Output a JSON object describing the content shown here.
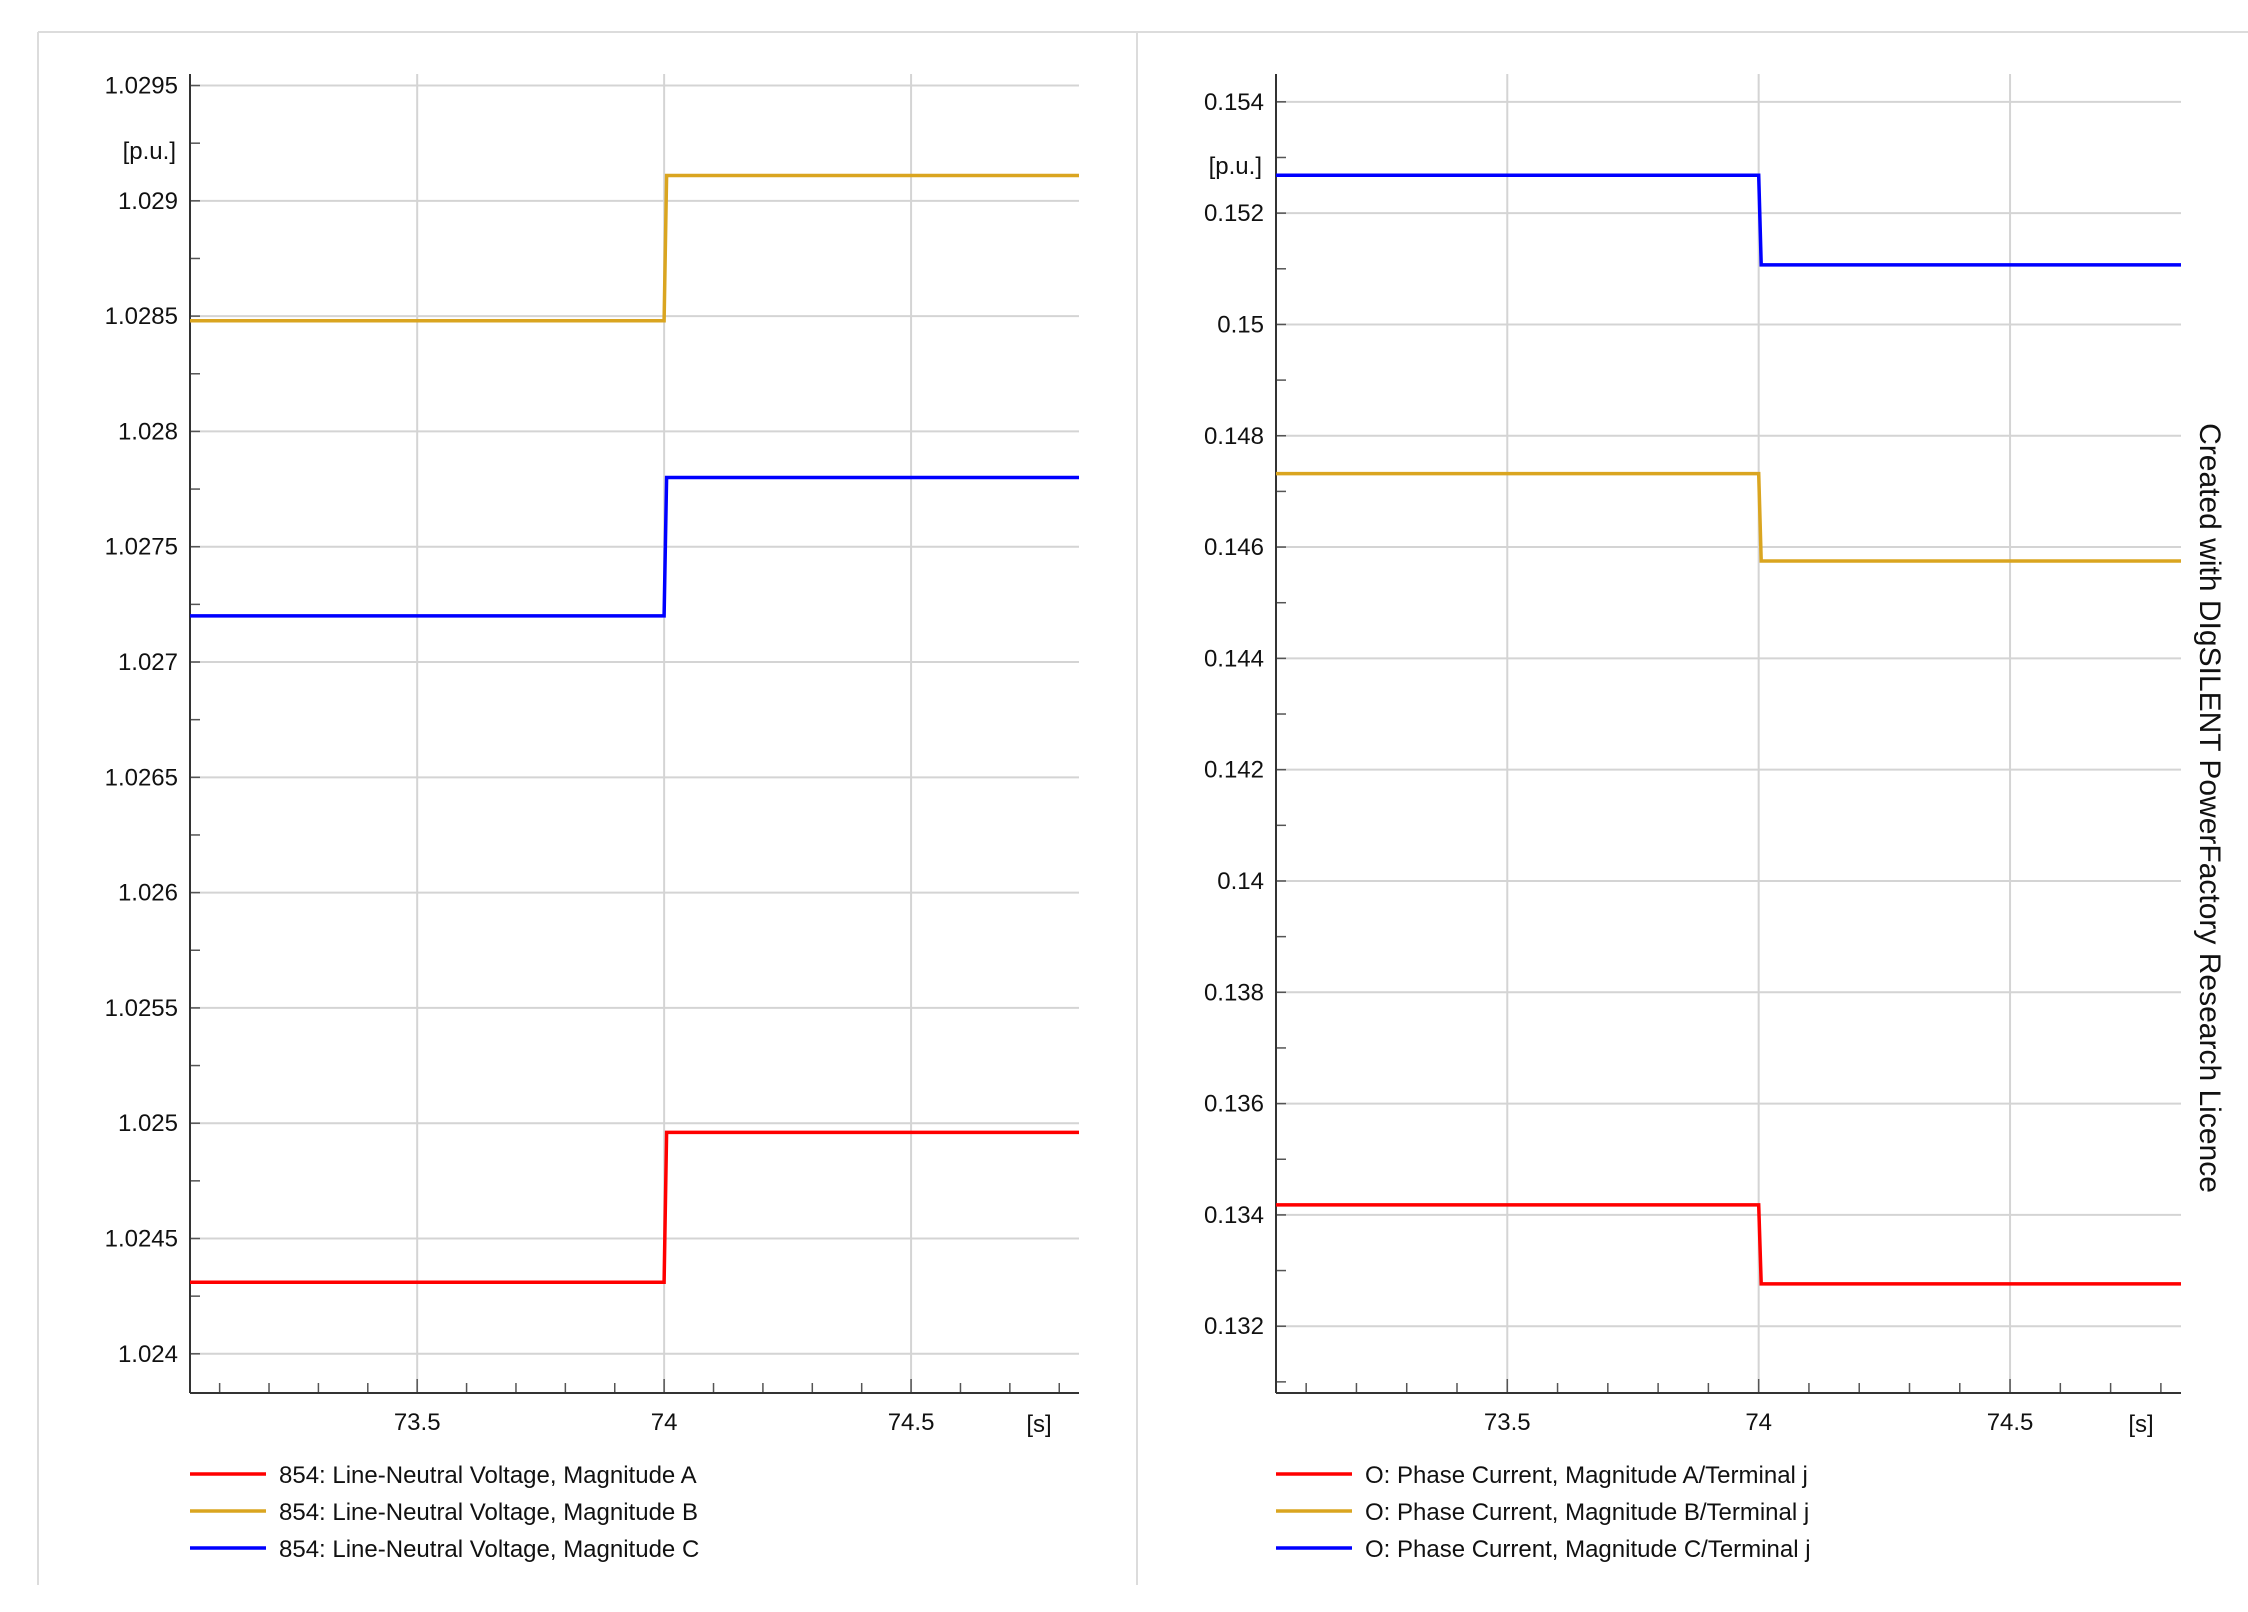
{
  "watermark": "Created with DIgSILENT PowerFactory Research Licence",
  "chart_data": [
    {
      "type": "line",
      "ylabel": "[p.u.]",
      "xlabel": "[s]",
      "xlim": [
        73.04,
        74.84
      ],
      "ylim": [
        1.02383,
        1.02955
      ],
      "x_ticks": [
        {
          "value": 73.5,
          "label": "73.5"
        },
        {
          "value": 74,
          "label": "74"
        },
        {
          "value": 74.5,
          "label": "74.5"
        }
      ],
      "x_minor_step": 0.1,
      "y_ticks": [
        {
          "value": 1.024,
          "label": "1.024"
        },
        {
          "value": 1.0245,
          "label": "1.0245"
        },
        {
          "value": 1.025,
          "label": "1.025"
        },
        {
          "value": 1.0255,
          "label": "1.0255"
        },
        {
          "value": 1.026,
          "label": "1.026"
        },
        {
          "value": 1.0265,
          "label": "1.0265"
        },
        {
          "value": 1.027,
          "label": "1.027"
        },
        {
          "value": 1.0275,
          "label": "1.0275"
        },
        {
          "value": 1.028,
          "label": "1.028"
        },
        {
          "value": 1.0285,
          "label": "1.0285"
        },
        {
          "value": 1.029,
          "label": "1.029"
        },
        {
          "value": 1.0295,
          "label": "1.0295"
        }
      ],
      "y_minor_step": 0.00025,
      "grid": true,
      "legend_position": "bottom",
      "series": [
        {
          "name": "854: Line-Neutral Voltage, Magnitude A",
          "color": "#ff0000",
          "x": [
            73.04,
            74.0,
            74.005,
            74.84
          ],
          "y": [
            1.02431,
            1.02431,
            1.02496,
            1.02496
          ]
        },
        {
          "name": "854: Line-Neutral Voltage, Magnitude B",
          "color": "#daa520",
          "x": [
            73.04,
            74.0,
            74.005,
            74.84
          ],
          "y": [
            1.02848,
            1.02848,
            1.02911,
            1.02911
          ]
        },
        {
          "name": "854: Line-Neutral Voltage, Magnitude C",
          "color": "#0000ff",
          "x": [
            73.04,
            74.0,
            74.005,
            74.84
          ],
          "y": [
            1.0272,
            1.0272,
            1.0278,
            1.0278
          ]
        }
      ]
    },
    {
      "type": "line",
      "ylabel": "[p.u.]",
      "xlabel": "[s]",
      "xlim": [
        73.04,
        74.84
      ],
      "ylim": [
        0.1308,
        0.1545
      ],
      "x_ticks": [
        {
          "value": 73.5,
          "label": "73.5"
        },
        {
          "value": 74,
          "label": "74"
        },
        {
          "value": 74.5,
          "label": "74.5"
        }
      ],
      "x_minor_step": 0.1,
      "y_ticks": [
        {
          "value": 0.132,
          "label": "0.132"
        },
        {
          "value": 0.134,
          "label": "0.134"
        },
        {
          "value": 0.136,
          "label": "0.136"
        },
        {
          "value": 0.138,
          "label": "0.138"
        },
        {
          "value": 0.14,
          "label": "0.14"
        },
        {
          "value": 0.142,
          "label": "0.142"
        },
        {
          "value": 0.144,
          "label": "0.144"
        },
        {
          "value": 0.146,
          "label": "0.146"
        },
        {
          "value": 0.148,
          "label": "0.148"
        },
        {
          "value": 0.15,
          "label": "0.15"
        },
        {
          "value": 0.152,
          "label": "0.152"
        },
        {
          "value": 0.154,
          "label": "0.154"
        }
      ],
      "y_minor_step": 0.001,
      "grid": true,
      "legend_position": "bottom",
      "series": [
        {
          "name": "O: Phase Current, Magnitude A/Terminal j",
          "color": "#ff0000",
          "x": [
            73.04,
            74.0,
            74.005,
            74.84
          ],
          "y": [
            0.13418,
            0.13418,
            0.13276,
            0.13276
          ]
        },
        {
          "name": "O: Phase Current, Magnitude B/Terminal j",
          "color": "#daa520",
          "x": [
            73.04,
            74.0,
            74.005,
            74.84
          ],
          "y": [
            0.14732,
            0.14732,
            0.14575,
            0.14575
          ]
        },
        {
          "name": "O: Phase Current, Magnitude C/Terminal j",
          "color": "#0000ff",
          "x": [
            73.04,
            74.0,
            74.005,
            74.84
          ],
          "y": [
            0.15268,
            0.15268,
            0.15107,
            0.15107
          ]
        }
      ]
    }
  ]
}
